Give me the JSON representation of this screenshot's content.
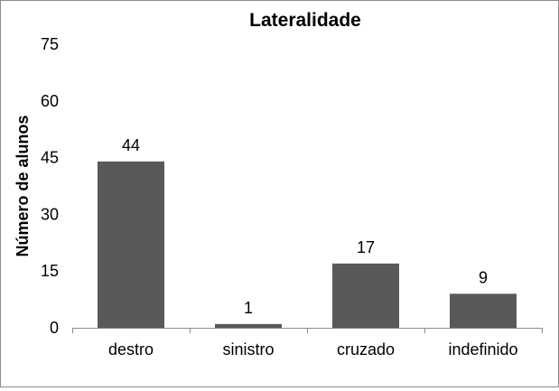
{
  "chart_data": {
    "type": "bar",
    "title": "Lateralidade",
    "xlabel": "",
    "ylabel": "Número de alunos",
    "categories": [
      "destro",
      "sinistro",
      "cruzado",
      "indefinido"
    ],
    "values": [
      44,
      1,
      17,
      9
    ],
    "data_labels": [
      "44",
      "1",
      "17",
      "9"
    ],
    "ylim": [
      0,
      75
    ],
    "yticks": [
      0,
      15,
      30,
      45,
      60,
      75
    ],
    "grid": false,
    "legend": "none",
    "bar_color": "#595959"
  }
}
